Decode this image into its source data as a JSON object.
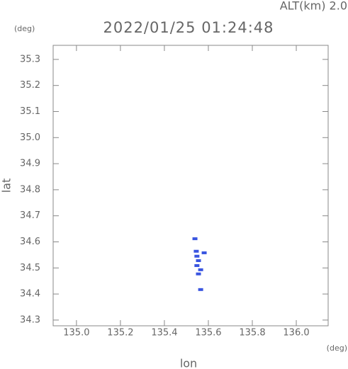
{
  "chart_data": {
    "type": "scatter",
    "title": "2022/01/25 01:24:48",
    "annotation": "ALT(km) 2.0",
    "x_unit": "(deg)",
    "y_unit": "(deg)",
    "x_label": "lon",
    "y_label": "lat",
    "color": "#3a55e0",
    "x": [
      135.539,
      135.545,
      135.581,
      135.548,
      135.555,
      135.548,
      135.565,
      135.555,
      135.565
    ],
    "values": [
      34.612,
      34.564,
      34.558,
      34.545,
      34.528,
      34.509,
      34.493,
      34.477,
      34.417
    ],
    "xlim": [
      134.894,
      136.145
    ],
    "ylim": [
      34.278,
      35.354
    ],
    "xticks": [
      {
        "value": 135.0,
        "label": "135.0"
      },
      135.2,
      135.4,
      135.6,
      135.8,
      {
        "value": 136.0,
        "label": "136.0"
      }
    ],
    "yticks": [
      34.3,
      34.4,
      34.5,
      34.6,
      34.7,
      34.8,
      34.9,
      {
        "value": 35.0,
        "label": "35.0"
      },
      35.1,
      35.2,
      35.3
    ]
  }
}
